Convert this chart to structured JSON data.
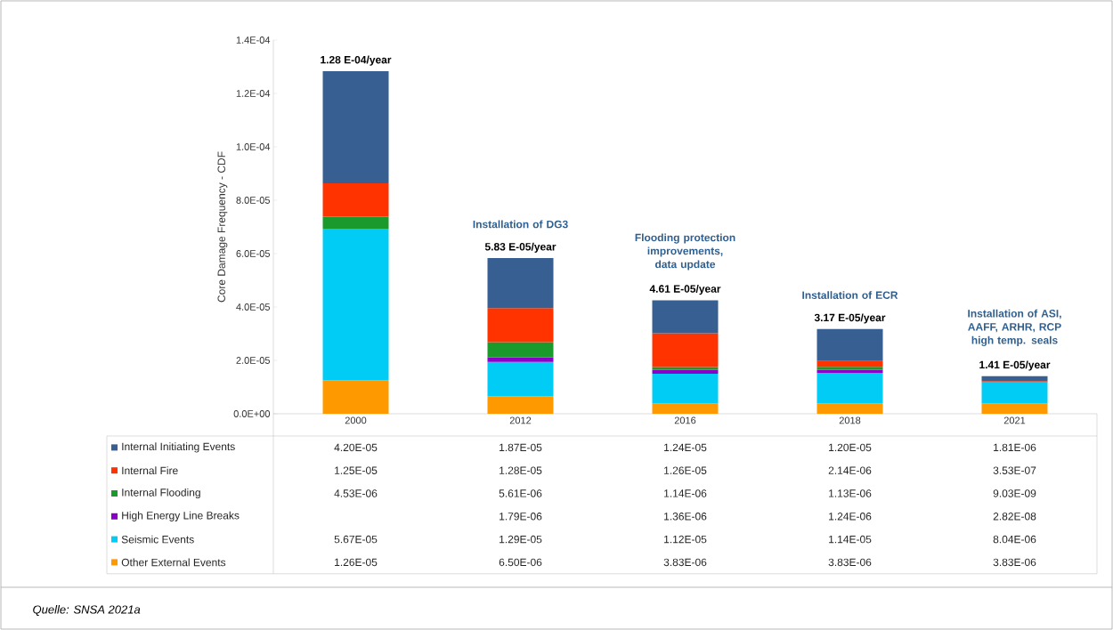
{
  "chart_data": {
    "type": "bar",
    "stacked": true,
    "ylabel": "Core Damage Frequency - CDF",
    "categories": [
      "2000",
      "2012",
      "2016",
      "2018",
      "2021"
    ],
    "series": [
      {
        "name": "Other External Events",
        "color": "#ff9900",
        "values": [
          1.26e-05,
          6.5e-06,
          3.83e-06,
          3.83e-06,
          3.83e-06
        ],
        "value_labels": [
          "1.26E-05",
          "6.50E-06",
          "3.83E-06",
          "3.83E-06",
          "3.83E-06"
        ]
      },
      {
        "name": "Seismic Events",
        "color": "#00ccf5",
        "values": [
          5.67e-05,
          1.29e-05,
          1.12e-05,
          1.14e-05,
          8.04e-06
        ],
        "value_labels": [
          "5.67E-05",
          "1.29E-05",
          "1.12E-05",
          "1.14E-05",
          "8.04E-06"
        ]
      },
      {
        "name": "High Energy Line Breaks",
        "color": "#8a00c8",
        "values": [
          null,
          1.79e-06,
          1.36e-06,
          1.24e-06,
          2.82e-08
        ],
        "value_labels": [
          null,
          "1.79E-06",
          "1.36E-06",
          "1.24E-06",
          "2.82E-08"
        ]
      },
      {
        "name": "Internal Flooding",
        "color": "#1a9a2a",
        "values": [
          4.53e-06,
          5.61e-06,
          1.14e-06,
          1.13e-06,
          9.03e-09
        ],
        "value_labels": [
          "4.53E-06",
          "5.61E-06",
          "1.14E-06",
          "1.13E-06",
          "9.03E-09"
        ]
      },
      {
        "name": "Internal Fire",
        "color": "#ff3300",
        "values": [
          1.25e-05,
          1.28e-05,
          1.26e-05,
          2.14e-06,
          3.53e-07
        ],
        "value_labels": [
          "1.25E-05",
          "1.28E-05",
          "1.26E-05",
          "2.14E-06",
          "3.53E-07"
        ]
      },
      {
        "name": "Internal Initiating Events",
        "color": "#375f92",
        "values": [
          4.2e-05,
          1.87e-05,
          1.24e-05,
          1.2e-05,
          1.81e-06
        ],
        "value_labels": [
          "4.20E-05",
          "1.87E-05",
          "1.24E-05",
          "1.20E-05",
          "1.81E-06"
        ]
      }
    ],
    "ylim": [
      0,
      0.00014
    ],
    "yticks": [
      {
        "value": 0,
        "label": "0.0E+00"
      },
      {
        "value": 2e-05,
        "label": "2.0E-05"
      },
      {
        "value": 4e-05,
        "label": "4.0E-05"
      },
      {
        "value": 6e-05,
        "label": "6.0E-05"
      },
      {
        "value": 8e-05,
        "label": "8.0E-05"
      },
      {
        "value": 0.0001,
        "label": "1.0E-04"
      },
      {
        "value": 0.00012,
        "label": "1.2E-04"
      },
      {
        "value": 0.00014,
        "label": "1.4E-04"
      }
    ],
    "totals": [
      "1.28 E-04/year",
      "5.83 E-05/year",
      "4.61 E-05/year",
      "3.17 E-05/year",
      "1.41 E-05/year"
    ],
    "legend": "bottom",
    "annotations": [
      "Installation of DG3",
      "Flooding protection improvements, data update",
      "Installation of ECR",
      "Installation of ASI, AAFF, ARHR, RCP high temp. seals",
      "Quelle: SNSA 2021a"
    ]
  }
}
